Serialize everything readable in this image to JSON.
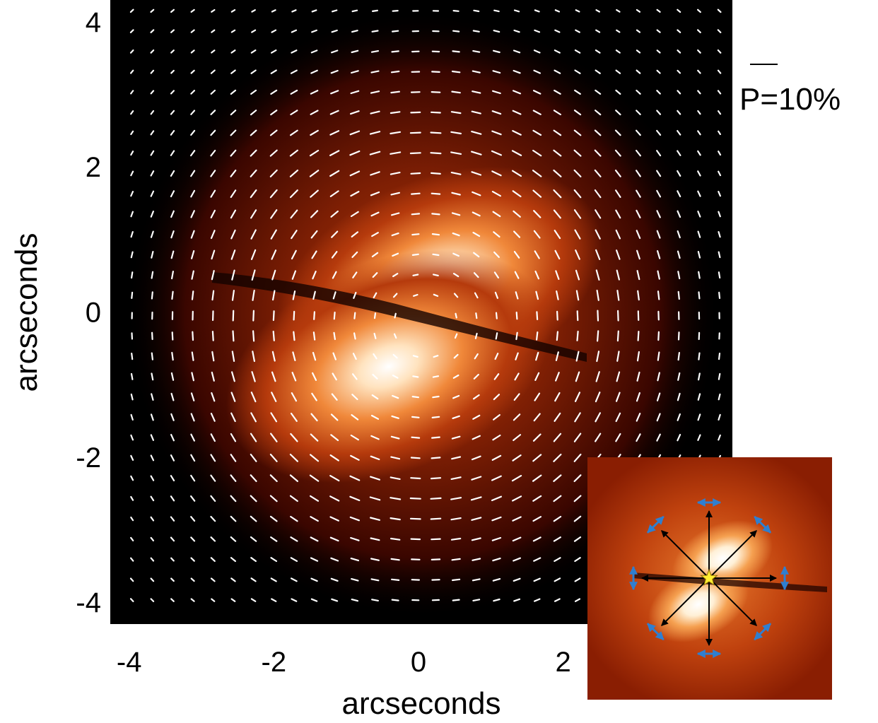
{
  "chart_data": {
    "type": "heatmap",
    "title": "",
    "xlabel": "arcseconds",
    "ylabel": "arcseconds",
    "xlim": [
      -4.3,
      4.3
    ],
    "ylim": [
      -4.3,
      4.3
    ],
    "x_ticks": [
      -4,
      -2,
      0,
      2
    ],
    "y_ticks": [
      4,
      2,
      0,
      -2,
      -4
    ],
    "grid": false,
    "colormap": [
      "#000000",
      "#5a0a00",
      "#b33208",
      "#ee7a2e",
      "#ffc98e",
      "#ffffff"
    ],
    "vector_color": "#ffffff",
    "vector_pattern": "centro-symmetric (azimuthal polarization)",
    "vector_spacing_arcsec": 0.28,
    "reference_vector": {
      "label": "P=10%",
      "percent": 10
    },
    "lobes": [
      {
        "name": "north lobe",
        "x": 0.25,
        "y": 0.4
      },
      {
        "name": "south lobe",
        "x": -0.45,
        "y": -0.75
      }
    ],
    "dark_lane_position_angle_deg": -25,
    "inset": {
      "star_color": "#ffee33",
      "radial_arrow_color": "#000000",
      "tangential_arrow_color": "#2f7fd0",
      "arrow_directions_deg": [
        0,
        45,
        90,
        135,
        180,
        225,
        270,
        315
      ]
    }
  }
}
